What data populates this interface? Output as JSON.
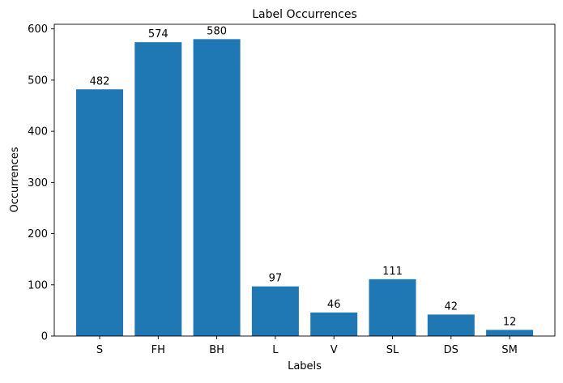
{
  "chart_data": {
    "type": "bar",
    "title": "Label Occurrences",
    "xlabel": "Labels",
    "ylabel": "Occurrences",
    "categories": [
      "S",
      "FH",
      "BH",
      "L",
      "V",
      "SL",
      "DS",
      "SM"
    ],
    "values": [
      482,
      574,
      580,
      97,
      46,
      111,
      42,
      12
    ],
    "data_labels": [
      "482",
      "574",
      "580",
      "97",
      "46",
      "111",
      "42",
      "12"
    ],
    "ylim": [
      0,
      609
    ],
    "yticks": [
      0,
      100,
      200,
      300,
      400,
      500,
      600
    ],
    "ytick_labels": [
      "0",
      "100",
      "200",
      "300",
      "400",
      "500",
      "600"
    ],
    "bar_color": "#1f77b4",
    "grid": false,
    "legend": "none"
  }
}
